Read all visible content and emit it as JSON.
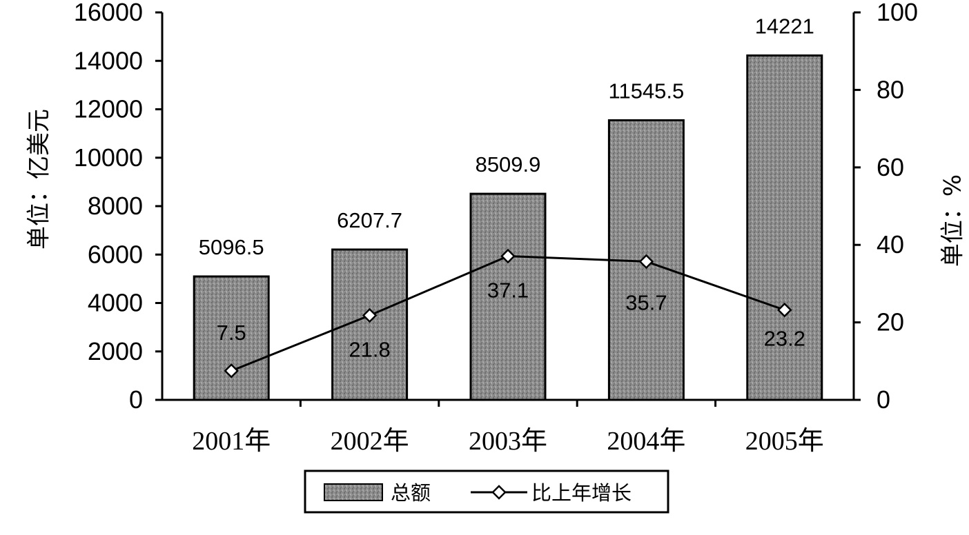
{
  "chart_data": {
    "type": "bar",
    "categories": [
      "2001年",
      "2002年",
      "2003年",
      "2004年",
      "2005年"
    ],
    "series": [
      {
        "name": "总额",
        "type": "bar",
        "axis": "left",
        "values": [
          5096.5,
          6207.7,
          8509.9,
          11545.5,
          14221
        ],
        "labels": [
          "5096.5",
          "6207.7",
          "8509.9",
          "11545.5",
          "14221"
        ]
      },
      {
        "name": "比上年增长",
        "type": "line",
        "axis": "right",
        "marker": "diamond",
        "values": [
          7.5,
          21.8,
          37.1,
          35.7,
          23.2
        ],
        "labels": [
          "7.5",
          "21.8",
          "37.1",
          "35.7",
          "23.2"
        ]
      }
    ],
    "ylabel": "单位：亿美元",
    "y2label": "单位：%",
    "ylim": [
      0,
      16000
    ],
    "y2lim": [
      0,
      100
    ],
    "yticks": [
      "0",
      "2000",
      "4000",
      "6000",
      "8000",
      "10000",
      "12000",
      "14000",
      "16000"
    ],
    "y2ticks": [
      "0",
      "20",
      "40",
      "60",
      "80",
      "100"
    ],
    "legend_position": "bottom",
    "grid": false,
    "colors": {
      "bar_fill": "#8a8a8a",
      "line": "#000000",
      "marker_fill": "#ffffff"
    }
  }
}
